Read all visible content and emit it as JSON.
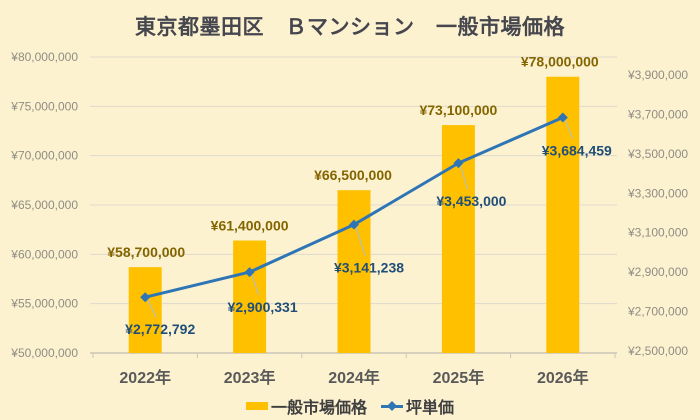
{
  "title": "東京都墨田区　Ｂマンション　一般市場価格",
  "chart_data": {
    "type": "bar",
    "subtype": "bar-line-combo",
    "categories": [
      "2022年",
      "2023年",
      "2024年",
      "2025年",
      "2026年"
    ],
    "series": [
      {
        "name": "一般市場価格",
        "type": "bar",
        "axis": "left",
        "color": "#FFC000",
        "values": [
          58700000,
          61400000,
          66500000,
          73100000,
          78000000
        ],
        "labels": [
          "¥58,700,000",
          "¥61,400,000",
          "¥66,500,000",
          "¥73,100,000",
          "¥78,000,000"
        ]
      },
      {
        "name": "坪単価",
        "type": "line",
        "axis": "right",
        "color": "#2E75B6",
        "values": [
          2772792,
          2900331,
          3141238,
          3453000,
          3684459
        ],
        "labels": [
          "¥2,772,792",
          "¥2,900,331",
          "¥3,141,238",
          "¥3,453,000",
          "¥3,684,459"
        ]
      }
    ],
    "left_axis": {
      "min": 50000000,
      "max": 80000000,
      "step": 5000000,
      "tick_labels": [
        "¥80,000,000",
        "¥75,000,000",
        "¥70,000,000",
        "¥65,000,000",
        "¥60,000,000",
        "¥55,000,000",
        "¥50,000,000"
      ]
    },
    "right_axis": {
      "min": 2500000,
      "max": 3900000,
      "step": 200000,
      "tick_labels": [
        "¥3,900,000",
        "¥3,700,000",
        "¥3,500,000",
        "¥3,300,000",
        "¥3,100,000",
        "¥2,900,000",
        "¥2,700,000",
        "¥2,500,000"
      ]
    },
    "grid": true,
    "legend_position": "bottom",
    "colors": {
      "background": "#FDF2D0",
      "bar": "#FFC000",
      "line": "#2E75B6",
      "bar_label": "#836500",
      "line_label": "#1F4E79",
      "gridline": "#ded9cc",
      "axis_line": "#c9c4b6"
    }
  }
}
